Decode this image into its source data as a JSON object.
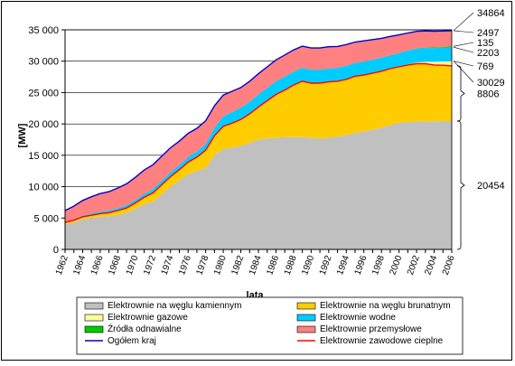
{
  "chart_data": {
    "type": "area",
    "xlabel": "lata",
    "ylabel": "[MW]",
    "ylim": [
      0,
      35000
    ],
    "yticks": [
      "0",
      "5 000",
      "10 000",
      "15 000",
      "20 000",
      "25 000",
      "30 000",
      "35 000"
    ],
    "xticks": [
      "1962",
      "1964",
      "1966",
      "1968",
      "1970",
      "1972",
      "1974",
      "1976",
      "1978",
      "1980",
      "1982",
      "1984",
      "1986",
      "1988",
      "1990",
      "1992",
      "1994",
      "1996",
      "1998",
      "2000",
      "2002",
      "2004",
      "2006"
    ],
    "x": [
      1962,
      1963,
      1964,
      1965,
      1966,
      1967,
      1968,
      1969,
      1970,
      1971,
      1972,
      1973,
      1974,
      1975,
      1976,
      1977,
      1978,
      1979,
      1980,
      1981,
      1982,
      1983,
      1984,
      1985,
      1986,
      1987,
      1988,
      1989,
      1990,
      1991,
      1992,
      1993,
      1994,
      1995,
      1996,
      1997,
      1998,
      1999,
      2000,
      2001,
      2002,
      2003,
      2004,
      2005,
      2006
    ],
    "series": [
      {
        "name": "Elektrownie na węglu kamiennym",
        "color": "#c0c0c0",
        "values": [
          4000,
          4300,
          4800,
          5000,
          5200,
          5300,
          5500,
          5800,
          6500,
          7200,
          7600,
          8800,
          10000,
          11000,
          12000,
          12500,
          13000,
          15000,
          16000,
          16200,
          16500,
          17000,
          17500,
          17700,
          17800,
          17900,
          17900,
          17900,
          17800,
          17700,
          17800,
          18000,
          18200,
          18600,
          18800,
          19100,
          19400,
          19800,
          20200,
          20300,
          20400,
          20400,
          20400,
          20450,
          20454
        ]
      },
      {
        "name": "Elektrownie na węglu brunatnym",
        "color": "#ffcc00",
        "values": [
          300,
          350,
          400,
          450,
          500,
          550,
          700,
          800,
          900,
          1100,
          1400,
          1500,
          1600,
          1700,
          1900,
          2200,
          2800,
          3100,
          3600,
          3900,
          4200,
          4600,
          5200,
          6000,
          6900,
          7500,
          8300,
          8900,
          8700,
          8800,
          8900,
          8800,
          8900,
          9000,
          9000,
          9000,
          9000,
          9000,
          8900,
          9100,
          9200,
          9200,
          9000,
          8900,
          8806
        ]
      },
      {
        "name": "Elektrownie gazowe",
        "color": "#ffff99",
        "values": [
          0,
          0,
          0,
          0,
          0,
          0,
          0,
          0,
          0,
          0,
          0,
          0,
          0,
          0,
          0,
          0,
          0,
          0,
          0,
          0,
          0,
          0,
          0,
          0,
          0,
          0,
          0,
          0,
          0,
          0,
          0,
          0,
          0,
          0,
          0,
          0,
          0,
          0,
          0,
          100,
          200,
          300,
          500,
          600,
          769
        ]
      },
      {
        "name": "Elektrownie wodne",
        "color": "#00ccff",
        "values": [
          100,
          150,
          200,
          250,
          300,
          350,
          400,
          450,
          500,
          550,
          600,
          650,
          700,
          750,
          800,
          900,
          1000,
          1300,
          1600,
          1800,
          1900,
          1950,
          2000,
          2050,
          2100,
          2150,
          2150,
          2150,
          2150,
          2150,
          2150,
          2150,
          2150,
          2150,
          2150,
          2150,
          2150,
          2150,
          2200,
          2200,
          2200,
          2200,
          2200,
          2200,
          2203
        ]
      },
      {
        "name": "Źródła odnawialne",
        "color": "#00cc00",
        "values": [
          0,
          0,
          0,
          0,
          0,
          0,
          0,
          0,
          0,
          0,
          0,
          0,
          0,
          0,
          0,
          0,
          0,
          0,
          0,
          0,
          0,
          0,
          0,
          0,
          0,
          0,
          0,
          0,
          0,
          0,
          0,
          0,
          0,
          0,
          0,
          0,
          0,
          0,
          0,
          0,
          50,
          70,
          90,
          110,
          135
        ]
      },
      {
        "name": "Elektrownie przemysłowe",
        "color": "#ff8080",
        "values": [
          1800,
          2100,
          2400,
          2700,
          2900,
          3000,
          3200,
          3400,
          3600,
          3800,
          3900,
          3900,
          3900,
          3800,
          3800,
          3700,
          3700,
          3500,
          3400,
          3300,
          3200,
          3250,
          3300,
          3350,
          3400,
          3450,
          3450,
          3450,
          3450,
          3450,
          3450,
          3400,
          3400,
          3300,
          3300,
          3200,
          3100,
          3000,
          2900,
          2800,
          2700,
          2650,
          2600,
          2550,
          2497
        ]
      }
    ],
    "lines": [
      {
        "name": "Ogółem kraj",
        "color": "#0000cc"
      },
      {
        "name": "Elektrownie zawodowe cieplne",
        "color": "#ff0000"
      }
    ],
    "annotations": [
      "34864",
      "2497",
      "135",
      "2203",
      "769",
      "30029",
      "8806",
      "20454"
    ]
  }
}
